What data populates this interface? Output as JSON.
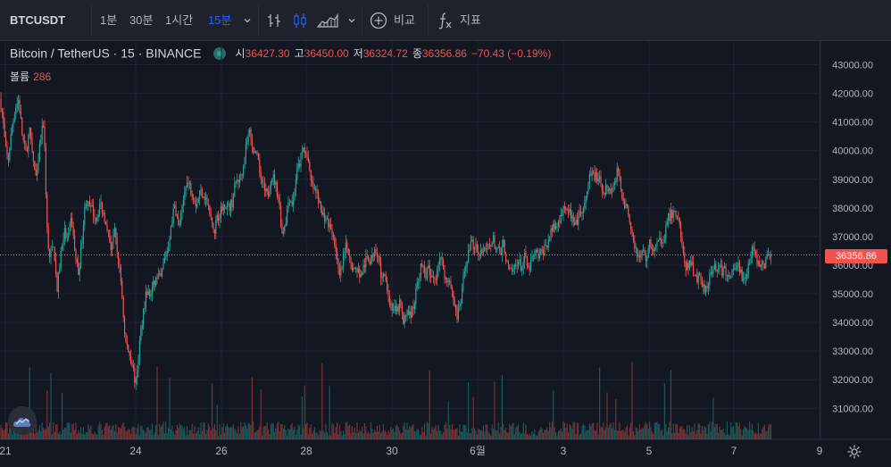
{
  "toolbar": {
    "symbol": "BTCUSDT",
    "intervals": [
      "1분",
      "30분",
      "1시간",
      "15분"
    ],
    "active_interval": "15분",
    "compare_label": "비교",
    "indicators_label": "지표"
  },
  "legend": {
    "title": "Bitcoin / TetherUS · 15 · BINANCE",
    "open_label": "시",
    "open": "36427.30",
    "high_label": "고",
    "high": "36450.00",
    "low_label": "저",
    "low": "36324.72",
    "close_label": "종",
    "close": "36356.86",
    "change": "−70.43 (−0.19%)"
  },
  "volume": {
    "label": "볼륨",
    "value": "286"
  },
  "last_price_label": "36356.86",
  "colors": {
    "up": "#26a69a",
    "down": "#ef5350",
    "background": "#131722",
    "accent": "#2962ff"
  },
  "icons": [
    "chevron-down-icon",
    "bars-style-icon",
    "candles-style-icon",
    "area-style-icon",
    "add-circle-icon",
    "fx-icon",
    "tradingview-logo-icon",
    "gear-icon"
  ],
  "chart_data": {
    "type": "candlestick",
    "y_ticks": [
      "43000.00",
      "42000.00",
      "41000.00",
      "40000.00",
      "39000.00",
      "38000.00",
      "37000.00",
      "36000.00",
      "35000.00",
      "34000.00",
      "33000.00",
      "32000.00",
      "31000.00"
    ],
    "x_ticks": [
      "21",
      "24",
      "26",
      "28",
      "30",
      "6월",
      "3",
      "5",
      "7",
      "9"
    ],
    "ylim": [
      30000,
      43000
    ],
    "last_price": 36356.86,
    "price_path": [
      [
        0,
        41800
      ],
      [
        3,
        41200
      ],
      [
        6,
        40100
      ],
      [
        9,
        39600
      ],
      [
        13,
        40700
      ],
      [
        17,
        41500
      ],
      [
        21,
        41800
      ],
      [
        25,
        40500
      ],
      [
        29,
        39900
      ],
      [
        33,
        40700
      ],
      [
        37,
        39700
      ],
      [
        41,
        38900
      ],
      [
        45,
        40300
      ],
      [
        49,
        41000
      ],
      [
        53,
        37000
      ],
      [
        56,
        36200
      ],
      [
        60,
        36800
      ],
      [
        64,
        35100
      ],
      [
        68,
        36400
      ],
      [
        72,
        37200
      ],
      [
        76,
        36800
      ],
      [
        80,
        37700
      ],
      [
        84,
        36400
      ],
      [
        88,
        35700
      ],
      [
        92,
        37000
      ],
      [
        96,
        38300
      ],
      [
        100,
        38000
      ],
      [
        104,
        37900
      ],
      [
        108,
        37600
      ],
      [
        112,
        38200
      ],
      [
        116,
        37800
      ],
      [
        120,
        37400
      ],
      [
        124,
        36600
      ],
      [
        128,
        37200
      ],
      [
        132,
        36300
      ],
      [
        136,
        35300
      ],
      [
        140,
        33400
      ],
      [
        144,
        33000
      ],
      [
        148,
        32600
      ],
      [
        152,
        31800
      ],
      [
        156,
        33200
      ],
      [
        160,
        34300
      ],
      [
        164,
        35100
      ],
      [
        168,
        34900
      ],
      [
        172,
        35300
      ],
      [
        176,
        35600
      ],
      [
        180,
        35500
      ],
      [
        184,
        36200
      ],
      [
        188,
        36600
      ],
      [
        192,
        37500
      ],
      [
        196,
        38100
      ],
      [
        200,
        37300
      ],
      [
        204,
        37900
      ],
      [
        208,
        38900
      ],
      [
        212,
        38800
      ],
      [
        216,
        38500
      ],
      [
        220,
        38100
      ],
      [
        224,
        38600
      ],
      [
        228,
        38500
      ],
      [
        232,
        38200
      ],
      [
        236,
        37600
      ],
      [
        240,
        37200
      ],
      [
        244,
        37700
      ],
      [
        248,
        37900
      ],
      [
        252,
        38200
      ],
      [
        256,
        38000
      ],
      [
        260,
        38200
      ],
      [
        264,
        38900
      ],
      [
        268,
        39000
      ],
      [
        272,
        39400
      ],
      [
        276,
        40300
      ],
      [
        280,
        40700
      ],
      [
        284,
        40000
      ],
      [
        288,
        39700
      ],
      [
        292,
        39100
      ],
      [
        296,
        38600
      ],
      [
        300,
        38400
      ],
      [
        304,
        39200
      ],
      [
        308,
        38900
      ],
      [
        312,
        38400
      ],
      [
        316,
        37100
      ],
      [
        320,
        37600
      ],
      [
        324,
        38400
      ],
      [
        328,
        38100
      ],
      [
        332,
        39200
      ],
      [
        336,
        39600
      ],
      [
        340,
        40100
      ],
      [
        344,
        39900
      ],
      [
        348,
        38900
      ],
      [
        352,
        38600
      ],
      [
        356,
        38400
      ],
      [
        360,
        37800
      ],
      [
        364,
        37700
      ],
      [
        368,
        37400
      ],
      [
        372,
        37200
      ],
      [
        376,
        36600
      ],
      [
        380,
        35500
      ],
      [
        384,
        36100
      ],
      [
        388,
        36700
      ],
      [
        392,
        36300
      ],
      [
        396,
        35800
      ],
      [
        400,
        35900
      ],
      [
        404,
        35600
      ],
      [
        408,
        36000
      ],
      [
        412,
        36300
      ],
      [
        416,
        36100
      ],
      [
        420,
        36700
      ],
      [
        424,
        36300
      ],
      [
        428,
        35400
      ],
      [
        432,
        35700
      ],
      [
        436,
        34700
      ],
      [
        440,
        34500
      ],
      [
        444,
        34300
      ],
      [
        448,
        34700
      ],
      [
        452,
        33900
      ],
      [
        456,
        34500
      ],
      [
        460,
        34200
      ],
      [
        464,
        34700
      ],
      [
        468,
        35500
      ],
      [
        472,
        36000
      ],
      [
        476,
        35700
      ],
      [
        480,
        35800
      ],
      [
        484,
        35500
      ],
      [
        488,
        35600
      ],
      [
        492,
        36300
      ],
      [
        496,
        36000
      ],
      [
        500,
        35400
      ],
      [
        504,
        35500
      ],
      [
        508,
        34800
      ],
      [
        512,
        34200
      ],
      [
        516,
        34700
      ],
      [
        520,
        35700
      ],
      [
        524,
        36400
      ],
      [
        528,
        36800
      ],
      [
        532,
        36600
      ],
      [
        536,
        36500
      ],
      [
        540,
        36500
      ],
      [
        544,
        36400
      ],
      [
        548,
        36700
      ],
      [
        552,
        36900
      ],
      [
        556,
        36600
      ],
      [
        560,
        36400
      ],
      [
        564,
        36800
      ],
      [
        568,
        36000
      ],
      [
        572,
        35700
      ],
      [
        576,
        35900
      ],
      [
        580,
        36200
      ],
      [
        584,
        35900
      ],
      [
        588,
        36300
      ],
      [
        592,
        35800
      ],
      [
        596,
        36200
      ],
      [
        600,
        36400
      ],
      [
        604,
        36300
      ],
      [
        608,
        36500
      ],
      [
        612,
        36700
      ],
      [
        616,
        37000
      ],
      [
        620,
        37400
      ],
      [
        624,
        37300
      ],
      [
        628,
        37800
      ],
      [
        632,
        38100
      ],
      [
        636,
        38000
      ],
      [
        640,
        37700
      ],
      [
        644,
        37300
      ],
      [
        648,
        37700
      ],
      [
        652,
        37800
      ],
      [
        656,
        38200
      ],
      [
        660,
        39000
      ],
      [
        664,
        39200
      ],
      [
        668,
        39100
      ],
      [
        672,
        38900
      ],
      [
        676,
        38600
      ],
      [
        680,
        38800
      ],
      [
        684,
        38600
      ],
      [
        688,
        38900
      ],
      [
        692,
        39300
      ],
      [
        696,
        38600
      ],
      [
        700,
        38100
      ],
      [
        704,
        37800
      ],
      [
        708,
        37100
      ],
      [
        712,
        36600
      ],
      [
        716,
        36200
      ],
      [
        720,
        36500
      ],
      [
        724,
        36200
      ],
      [
        728,
        36800
      ],
      [
        732,
        36500
      ],
      [
        736,
        36700
      ],
      [
        740,
        36900
      ],
      [
        744,
        37000
      ],
      [
        748,
        37600
      ],
      [
        752,
        37800
      ],
      [
        756,
        37800
      ],
      [
        760,
        37700
      ],
      [
        764,
        36700
      ],
      [
        768,
        35800
      ],
      [
        772,
        36100
      ],
      [
        776,
        35900
      ],
      [
        780,
        35500
      ],
      [
        784,
        35700
      ],
      [
        788,
        35200
      ],
      [
        792,
        35300
      ],
      [
        796,
        35800
      ],
      [
        800,
        36000
      ],
      [
        804,
        35900
      ],
      [
        808,
        35800
      ],
      [
        812,
        35800
      ],
      [
        816,
        35500
      ],
      [
        820,
        35900
      ],
      [
        824,
        36100
      ],
      [
        828,
        35900
      ],
      [
        832,
        35500
      ],
      [
        836,
        35700
      ],
      [
        840,
        36200
      ],
      [
        844,
        36700
      ],
      [
        848,
        36200
      ],
      [
        852,
        36100
      ],
      [
        856,
        35900
      ],
      [
        860,
        36400
      ],
      [
        864,
        36357
      ]
    ]
  }
}
